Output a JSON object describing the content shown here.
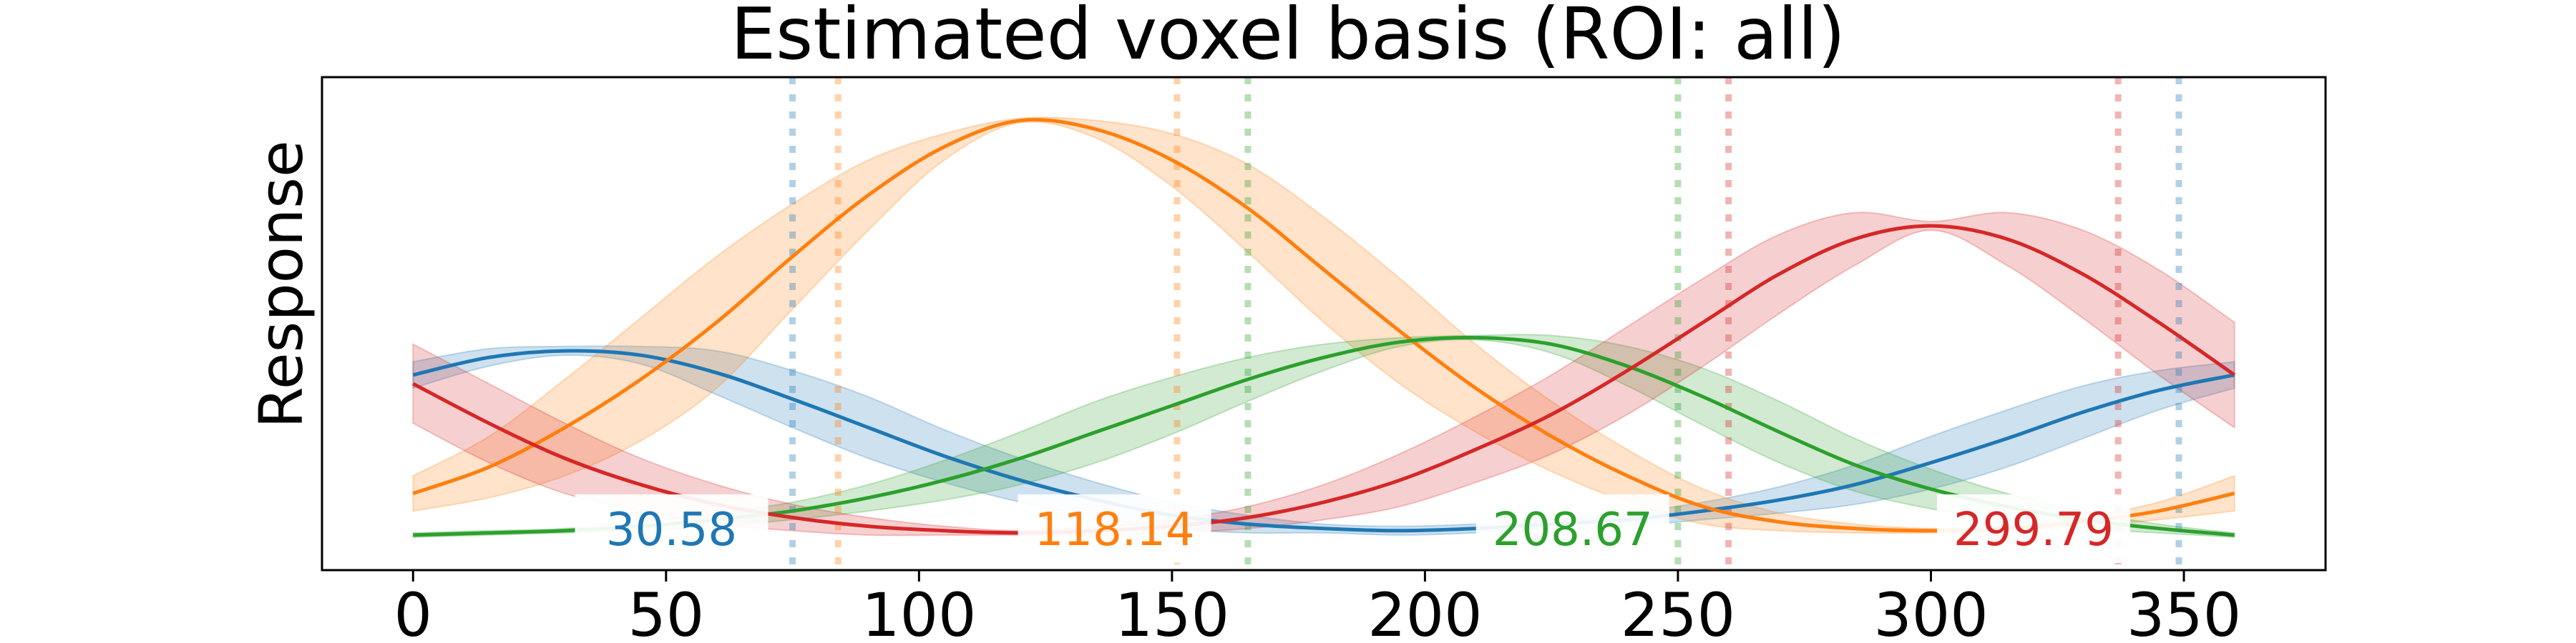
{
  "chart_data": {
    "type": "line",
    "title": "Estimated voxel basis (ROI: all)",
    "xlabel": "",
    "ylabel": "Response",
    "xlim": [
      -18,
      378
    ],
    "ylim": [
      0,
      1
    ],
    "xticks": [
      0,
      50,
      100,
      150,
      200,
      250,
      300,
      350
    ],
    "xtick_labels": [
      "0",
      "50",
      "100",
      "150",
      "200",
      "250",
      "300",
      "350"
    ],
    "grid": false,
    "series": [
      {
        "color": "#1f77b4",
        "peak_x": 30.58,
        "peak_label": "30.58",
        "x": [
          0,
          15,
          30,
          45,
          60,
          75,
          90,
          105,
          120,
          135,
          150,
          165,
          180,
          195,
          210,
          225,
          240,
          255,
          270,
          285,
          300,
          315,
          330,
          345,
          360
        ],
        "y": [
          0.37,
          0.41,
          0.425,
          0.415,
          0.375,
          0.315,
          0.25,
          0.185,
          0.13,
          0.085,
          0.05,
          0.03,
          0.02,
          0.015,
          0.02,
          0.03,
          0.04,
          0.06,
          0.085,
          0.12,
          0.17,
          0.225,
          0.285,
          0.335,
          0.37
        ],
        "band_half_width": [
          0.03,
          0.02,
          0.01,
          0.02,
          0.05,
          0.065,
          0.07,
          0.06,
          0.05,
          0.04,
          0.03,
          0.02,
          0.01,
          0.01,
          0.01,
          0.01,
          0.015,
          0.02,
          0.03,
          0.045,
          0.06,
          0.065,
          0.06,
          0.045,
          0.03
        ],
        "markers_x": [
          75,
          349
        ]
      },
      {
        "color": "#ff7f0e",
        "peak_x": 118.14,
        "peak_label": "118.14",
        "x": [
          0,
          15,
          30,
          45,
          60,
          75,
          90,
          105,
          120,
          135,
          150,
          165,
          180,
          195,
          210,
          225,
          240,
          255,
          270,
          285,
          300,
          315,
          330,
          345,
          360
        ],
        "y": [
          0.1,
          0.16,
          0.25,
          0.36,
          0.49,
          0.64,
          0.78,
          0.89,
          0.95,
          0.93,
          0.86,
          0.75,
          0.61,
          0.47,
          0.34,
          0.23,
          0.14,
          0.07,
          0.035,
          0.02,
          0.015,
          0.02,
          0.035,
          0.06,
          0.1
        ],
        "band_half_width": [
          0.04,
          0.07,
          0.11,
          0.14,
          0.15,
          0.12,
          0.08,
          0.03,
          0.005,
          0.02,
          0.06,
          0.1,
          0.12,
          0.12,
          0.1,
          0.08,
          0.06,
          0.04,
          0.02,
          0.01,
          0.005,
          0.005,
          0.01,
          0.02,
          0.04
        ],
        "markers_x": [
          84,
          151
        ]
      },
      {
        "color": "#2ca02c",
        "peak_x": 208.67,
        "peak_label": "208.67",
        "x": [
          0,
          15,
          30,
          45,
          60,
          75,
          90,
          105,
          120,
          135,
          150,
          165,
          180,
          195,
          210,
          225,
          240,
          255,
          270,
          285,
          300,
          315,
          330,
          345,
          360
        ],
        "y": [
          0.005,
          0.01,
          0.015,
          0.025,
          0.04,
          0.06,
          0.09,
          0.13,
          0.18,
          0.24,
          0.3,
          0.36,
          0.41,
          0.445,
          0.455,
          0.44,
          0.39,
          0.32,
          0.24,
          0.165,
          0.11,
          0.07,
          0.04,
          0.02,
          0.005
        ],
        "band_half_width": [
          0.005,
          0.005,
          0.005,
          0.01,
          0.015,
          0.02,
          0.03,
          0.045,
          0.06,
          0.07,
          0.065,
          0.05,
          0.03,
          0.01,
          0.005,
          0.02,
          0.045,
          0.065,
          0.07,
          0.06,
          0.045,
          0.03,
          0.02,
          0.01,
          0.005
        ],
        "markers_x": [
          165,
          250
        ]
      },
      {
        "color": "#d62728",
        "peak_x": 299.79,
        "peak_label": "299.79",
        "x": [
          0,
          15,
          30,
          45,
          60,
          75,
          90,
          105,
          120,
          135,
          150,
          165,
          180,
          195,
          210,
          225,
          240,
          255,
          270,
          285,
          300,
          315,
          330,
          345,
          360
        ],
        "y": [
          0.35,
          0.26,
          0.18,
          0.12,
          0.075,
          0.045,
          0.025,
          0.015,
          0.01,
          0.015,
          0.025,
          0.045,
          0.08,
          0.13,
          0.2,
          0.28,
          0.38,
          0.49,
          0.6,
          0.68,
          0.71,
          0.68,
          0.6,
          0.49,
          0.37
        ],
        "band_half_width": [
          0.09,
          0.09,
          0.08,
          0.06,
          0.045,
          0.03,
          0.02,
          0.01,
          0.005,
          0.01,
          0.015,
          0.025,
          0.04,
          0.06,
          0.075,
          0.09,
          0.1,
          0.1,
          0.09,
          0.06,
          0.01,
          0.06,
          0.1,
          0.12,
          0.12
        ],
        "markers_x": [
          260,
          337
        ]
      }
    ]
  }
}
